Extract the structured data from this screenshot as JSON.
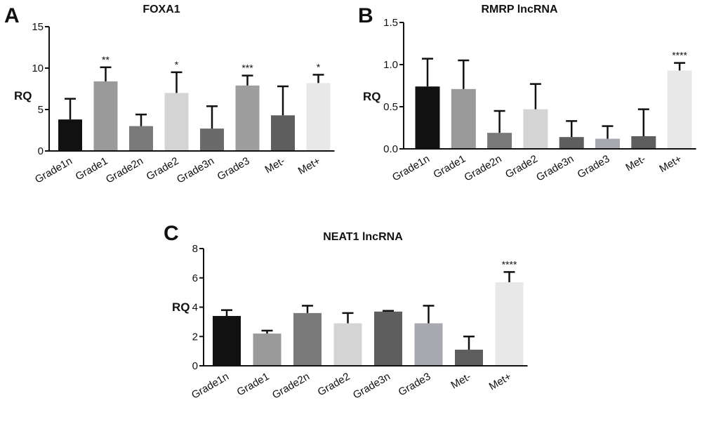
{
  "chart_data": [
    {
      "type": "bar",
      "panel": "A",
      "title": "FOXA1",
      "ylabel": "RQ",
      "ylim": [
        0,
        15
      ],
      "yticks": [
        "0",
        "5",
        "10",
        "15"
      ],
      "categories": [
        "Grade1n",
        "Grade1",
        "Grade2n",
        "Grade2",
        "Grade3n",
        "Grade3",
        "Met-",
        "Met+"
      ],
      "values": [
        3.8,
        8.4,
        3.0,
        7.0,
        2.7,
        7.9,
        4.3,
        8.2
      ],
      "errors": [
        2.5,
        1.7,
        1.4,
        2.5,
        2.7,
        1.2,
        3.5,
        1.0
      ],
      "significance": [
        "",
        "**",
        "",
        "*",
        "",
        "***",
        "",
        "*"
      ],
      "colors": [
        "#111111",
        "#9a9a9a",
        "#7a7a7a",
        "#d4d4d4",
        "#6a6a6a",
        "#9e9e9e",
        "#5e5e5e",
        "#e8e8e8"
      ]
    },
    {
      "type": "bar",
      "panel": "B",
      "title": "RMRP lncRNA",
      "ylabel": "RQ",
      "ylim": [
        0,
        1.5
      ],
      "yticks": [
        "0.0",
        "0.5",
        "1.0",
        "1.5"
      ],
      "categories": [
        "Grade1n",
        "Grade1",
        "Grade2n",
        "Grade2",
        "Grade3n",
        "Grade3",
        "Met-",
        "Met+"
      ],
      "values": [
        0.74,
        0.71,
        0.19,
        0.47,
        0.14,
        0.12,
        0.15,
        0.93
      ],
      "errors": [
        0.33,
        0.34,
        0.26,
        0.3,
        0.19,
        0.15,
        0.32,
        0.09
      ],
      "significance": [
        "",
        "",
        "",
        "",
        "",
        "",
        "",
        "****"
      ],
      "colors": [
        "#111111",
        "#9a9a9a",
        "#7a7a7a",
        "#d4d4d4",
        "#5e5e5e",
        "#a8a8b0",
        "#5e5e5e",
        "#e8e8e8"
      ]
    },
    {
      "type": "bar",
      "panel": "C",
      "title": "NEAT1 lncRNA",
      "ylabel": "RQ",
      "ylim": [
        0,
        8
      ],
      "yticks": [
        "0",
        "2",
        "4",
        "6",
        "8"
      ],
      "categories": [
        "Grade1n",
        "Grade1",
        "Grade2n",
        "Grade2",
        "Grade3n",
        "Grade3",
        "Met-",
        "Met+"
      ],
      "values": [
        3.4,
        2.2,
        3.6,
        2.9,
        3.7,
        2.9,
        1.1,
        5.7
      ],
      "errors": [
        0.4,
        0.2,
        0.5,
        0.7,
        0.05,
        1.2,
        0.9,
        0.7
      ],
      "significance": [
        "",
        "",
        "",
        "",
        "",
        "",
        "",
        "****"
      ],
      "colors": [
        "#111111",
        "#9a9a9a",
        "#7a7a7a",
        "#d4d4d4",
        "#5e5e5e",
        "#a8a8b0",
        "#5e5e5e",
        "#e8e8e8"
      ]
    }
  ]
}
